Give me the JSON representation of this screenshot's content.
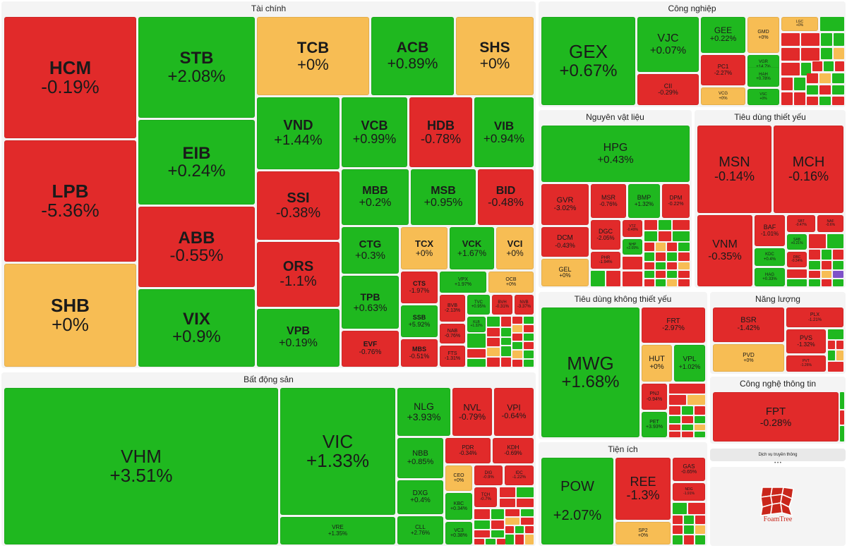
{
  "colors": {
    "up": "#1fb81f",
    "down": "#e12a2a",
    "flat": "#f7bd54",
    "panel": "#f4f4f4"
  },
  "sectors": {
    "tai_chinh": "Tài chính",
    "bat_dong_san": "Bất động sản",
    "cong_nghiep": "Công nghiệp",
    "nguyen_vat_lieu": "Nguyên vật liệu",
    "tieu_dung_thiet_yeu": "Tiêu dùng thiết yếu",
    "tieu_dung_khong_thiet_yeu": "Tiêu dùng không thiết yếu",
    "nang_luong": "Năng lượng",
    "tien_ich": "Tiện ích",
    "cong_nghe": "Công nghệ thông tin",
    "dich_vu": "Dịch vụ truyền thông",
    "ellipsis": "• • •"
  },
  "stocks": {
    "HCM": {
      "t": "HCM",
      "p": "-0.19%"
    },
    "LPB": {
      "t": "LPB",
      "p": "-5.36%"
    },
    "SHB": {
      "t": "SHB",
      "p": "+0%"
    },
    "STB": {
      "t": "STB",
      "p": "+2.08%"
    },
    "EIB": {
      "t": "EIB",
      "p": "+0.24%"
    },
    "ABB": {
      "t": "ABB",
      "p": "-0.55%"
    },
    "VIX": {
      "t": "VIX",
      "p": "+0.9%"
    },
    "TCB": {
      "t": "TCB",
      "p": "+0%"
    },
    "ACB": {
      "t": "ACB",
      "p": "+0.89%"
    },
    "SHS": {
      "t": "SHS",
      "p": "+0%"
    },
    "VND": {
      "t": "VND",
      "p": "+1.44%"
    },
    "VCB": {
      "t": "VCB",
      "p": "+0.99%"
    },
    "HDB": {
      "t": "HDB",
      "p": "-0.78%"
    },
    "VIB": {
      "t": "VIB",
      "p": "+0.94%"
    },
    "SSI": {
      "t": "SSI",
      "p": "-0.38%"
    },
    "MBB": {
      "t": "MBB",
      "p": "+0.2%"
    },
    "MSB": {
      "t": "MSB",
      "p": "+0.95%"
    },
    "BID": {
      "t": "BID",
      "p": "-0.48%"
    },
    "ORS": {
      "t": "ORS",
      "p": "-1.1%"
    },
    "CTG": {
      "t": "CTG",
      "p": "+0.3%"
    },
    "TCX": {
      "t": "TCX",
      "p": "+0%"
    },
    "VCK": {
      "t": "VCK",
      "p": "+1.67%"
    },
    "VCI": {
      "t": "VCI",
      "p": "+0%"
    },
    "TPB": {
      "t": "TPB",
      "p": "+0.63%"
    },
    "CTS": {
      "t": "CTS",
      "p": "-1.97%"
    },
    "VPX": {
      "t": "VPX",
      "p": "+1.97%"
    },
    "OCB": {
      "t": "OCB",
      "p": "+0%"
    },
    "VPB": {
      "t": "VPB",
      "p": "+0.19%"
    },
    "SSB": {
      "t": "SSB",
      "p": "+5.92%"
    },
    "BVB": {
      "t": "BVB",
      "p": "-2.13%"
    },
    "TVC": {
      "t": "TVC",
      "p": "+0.95%"
    },
    "BVH": {
      "t": "BVH",
      "p": "-0.31%"
    },
    "NVB": {
      "t": "NVB",
      "p": "-3.37%"
    },
    "NAB": {
      "t": "NAB",
      "p": "-0.76%"
    },
    "KLB": {
      "t": "KLB",
      "p": "+1.32%"
    },
    "EVF": {
      "t": "EVF",
      "p": "-0.76%"
    },
    "MBS": {
      "t": "MBS",
      "p": "-0.51%"
    },
    "FTS": {
      "t": "FTS",
      "p": "-1.31%"
    },
    "VHM": {
      "t": "VHM",
      "p": "+3.51%"
    },
    "VIC": {
      "t": "VIC",
      "p": "+1.33%"
    },
    "VRE": {
      "t": "VRE",
      "p": "+1.35%"
    },
    "NLG": {
      "t": "NLG",
      "p": "+3.93%"
    },
    "NVL": {
      "t": "NVL",
      "p": "-0.79%"
    },
    "VPI": {
      "t": "VPI",
      "p": "-0.64%"
    },
    "NBB": {
      "t": "NBB",
      "p": "+0.85%"
    },
    "PDR": {
      "t": "PDR",
      "p": "-0.34%"
    },
    "KDH": {
      "t": "KDH",
      "p": "-0.69%"
    },
    "DXG": {
      "t": "DXG",
      "p": "+0.4%"
    },
    "CEO": {
      "t": "CEO",
      "p": "+0%"
    },
    "DIG": {
      "t": "DIG",
      "p": "-0.9%"
    },
    "IDC": {
      "t": "IDC",
      "p": "-1.22%"
    },
    "KBC": {
      "t": "KBC",
      "p": "+0.34%"
    },
    "TCH": {
      "t": "TCH",
      "p": "-0.7%"
    },
    "CLL": {
      "t": "CLL",
      "p": "+2.76%"
    },
    "VC3": {
      "t": "VC3",
      "p": "+0.38%"
    },
    "GEX": {
      "t": "GEX",
      "p": "+0.67%"
    },
    "VJC": {
      "t": "VJC",
      "p": "+0.07%"
    },
    "GEE": {
      "t": "GEE",
      "p": "+0.22%"
    },
    "GMD": {
      "t": "GMD",
      "p": "+0%"
    },
    "CII": {
      "t": "CII",
      "p": "-0.29%"
    },
    "PC1": {
      "t": "PC1",
      "p": "-2.27%"
    },
    "VGR": {
      "t": "VGR",
      "p": "+14.7%"
    },
    "HAH": {
      "t": "HAH",
      "p": "+0.78%"
    },
    "VCG": {
      "t": "VCG",
      "p": "+0%"
    },
    "VSC": {
      "t": "VSC",
      "p": "+0%"
    },
    "LGC": {
      "t": "LGC",
      "p": "+0%"
    },
    "HPG": {
      "t": "HPG",
      "p": "+0.43%"
    },
    "GVR": {
      "t": "GVR",
      "p": "-3.02%"
    },
    "MSR": {
      "t": "MSR",
      "p": "-0.76%"
    },
    "BMP": {
      "t": "BMP",
      "p": "+1.32%"
    },
    "DPM": {
      "t": "DPM",
      "p": "-0.22%"
    },
    "DCM": {
      "t": "DCM",
      "p": "-0.43%"
    },
    "DGC": {
      "t": "DGC",
      "p": "-2.05%"
    },
    "VTZ": {
      "t": "VTZ",
      "p": "-0.49%"
    },
    "GEL": {
      "t": "GEL",
      "p": "+0%"
    },
    "PHR": {
      "t": "PHR",
      "p": "-1.94%"
    },
    "NHP": {
      "t": "NHP",
      "p": "+2.09%"
    },
    "MSN": {
      "t": "MSN",
      "p": "-0.14%"
    },
    "MCH": {
      "t": "MCH",
      "p": "-0.16%"
    },
    "VNM": {
      "t": "VNM",
      "p": "-0.35%"
    },
    "BAF": {
      "t": "BAF",
      "p": "-1.01%"
    },
    "SBT": {
      "t": "SBT",
      "p": "-0.47%"
    },
    "NAF": {
      "t": "NAF",
      "p": "-0.6%"
    },
    "SAB": {
      "t": "SAB",
      "p": "+0.21%"
    },
    "KDC": {
      "t": "KDC",
      "p": "+0.4%"
    },
    "DBC": {
      "t": "DBC",
      "p": "-0.34%"
    },
    "HAG": {
      "t": "HAG",
      "p": "+0.33%"
    },
    "MWG": {
      "t": "MWG",
      "p": "+1.68%"
    },
    "FRT": {
      "t": "FRT",
      "p": "-2.97%"
    },
    "HUT": {
      "t": "HUT",
      "p": "+0%"
    },
    "VPL": {
      "t": "VPL",
      "p": "+1.02%"
    },
    "PNJ": {
      "t": "PNJ",
      "p": "-0.94%"
    },
    "PET": {
      "t": "PET",
      "p": "+3.93%"
    },
    "BSR": {
      "t": "BSR",
      "p": "-1.42%"
    },
    "PLX": {
      "t": "PLX",
      "p": "-1.21%"
    },
    "PVD": {
      "t": "PVD",
      "p": "+0%"
    },
    "PVS": {
      "t": "PVS",
      "p": "-1.32%"
    },
    "PVT": {
      "t": "PVT",
      "p": "-1.26%"
    },
    "POW": {
      "t": "POW",
      "p": "+2.07%"
    },
    "REE": {
      "t": "REE",
      "p": "-1.3%"
    },
    "GAS": {
      "t": "GAS",
      "p": "-0.65%"
    },
    "SP2": {
      "t": "SP2",
      "p": "+0%"
    },
    "NDG": {
      "t": "NDG",
      "p": "-1.91%"
    },
    "FPT": {
      "t": "FPT",
      "p": "-0.28%"
    }
  },
  "logo": {
    "label": "FoamTree"
  }
}
